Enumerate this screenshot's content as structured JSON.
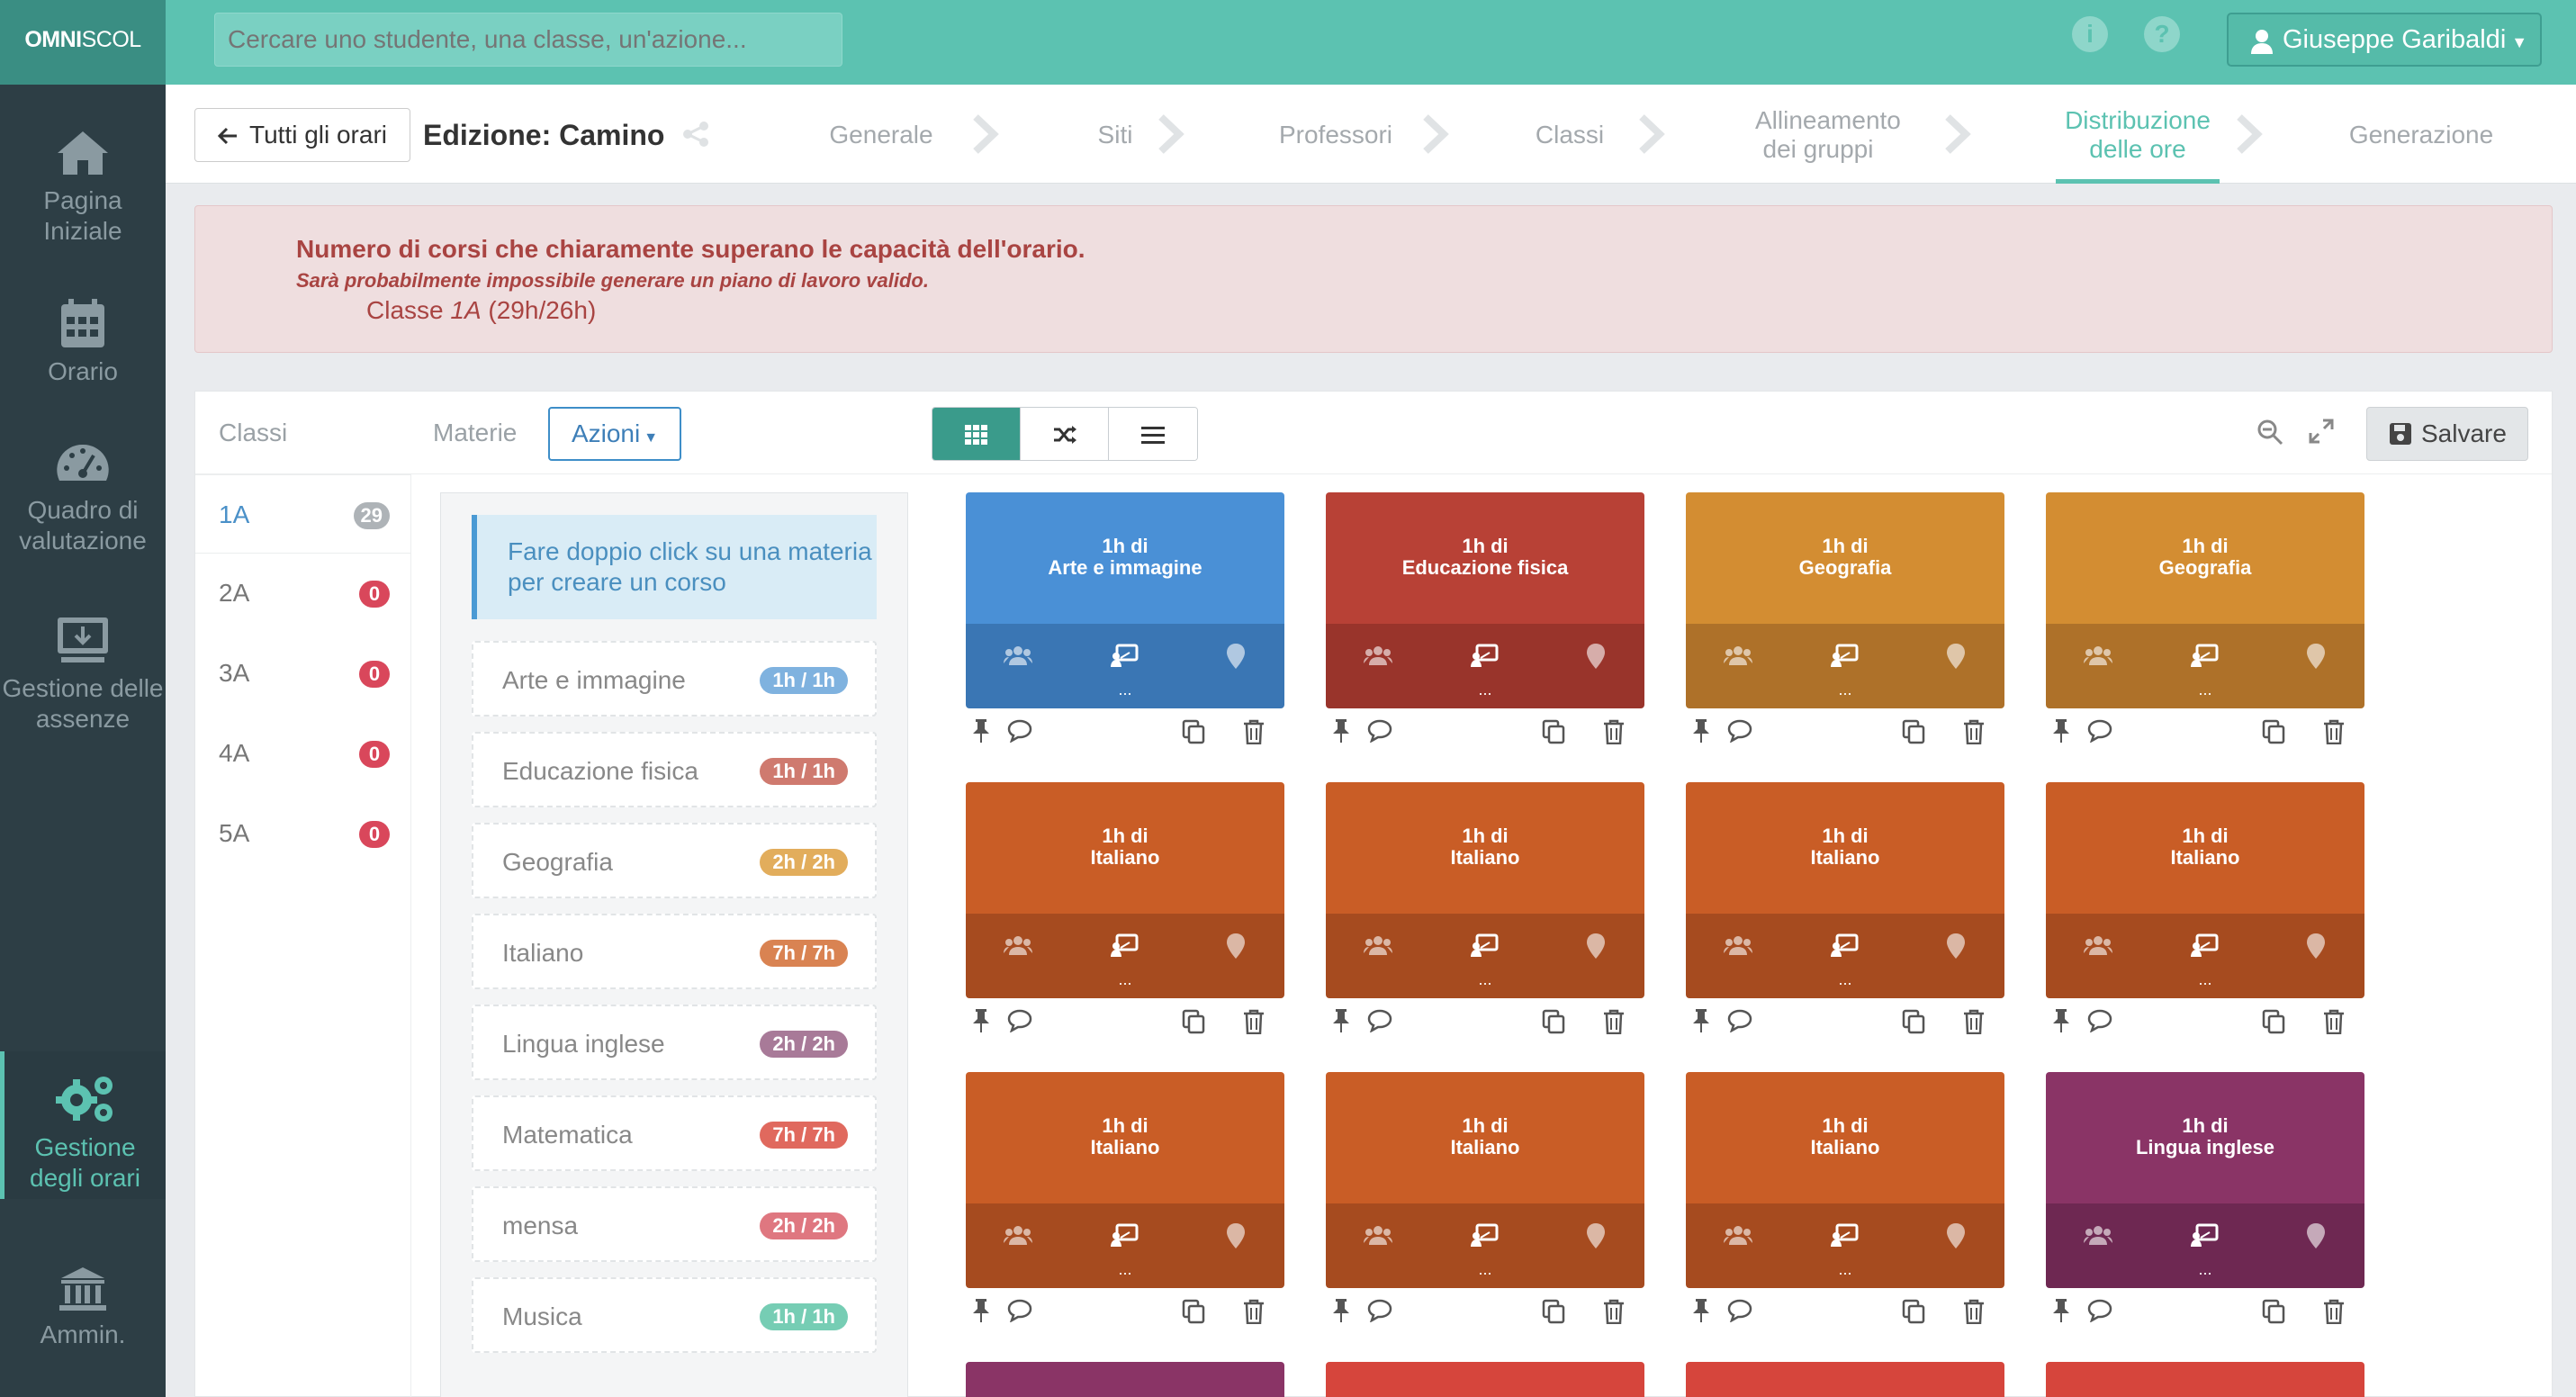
{
  "app": {
    "brand_bold": "OMNI",
    "brand_light": "SCOL"
  },
  "search": {
    "placeholder": "Cercare uno studente, una classe, un'azione..."
  },
  "user": {
    "name": "Giuseppe Garibaldi"
  },
  "sidebar": {
    "items": [
      {
        "label": "Pagina Iniziale",
        "icon": "home-icon"
      },
      {
        "label": "Orario",
        "icon": "calendar-icon"
      },
      {
        "label": "Quadro di valutazione",
        "icon": "dashboard-icon"
      },
      {
        "label": "Gestione delle assenze",
        "icon": "monitor-icon"
      },
      {
        "label": "Gestione degli orari",
        "icon": "gears-icon",
        "active": true
      },
      {
        "label": "Ammin.",
        "icon": "bank-icon"
      }
    ]
  },
  "subheader": {
    "back_label": "Tutti gli orari",
    "edition": "Edizione: Camino",
    "steps": [
      "Generale",
      "Siti",
      "Professori",
      "Classi",
      "Allineamento dei gruppi",
      "Distribuzione delle ore",
      "Generazione"
    ],
    "active_step": "Distribuzione delle ore"
  },
  "alert": {
    "title": "Numero di corsi che chiaramente superano le capacità dell'orario.",
    "subtitle": "Sarà probabilmente impossibile generare un piano di lavoro valido.",
    "class_prefix": "Classe",
    "class_name": "1A",
    "class_hours": "(29h/26h)"
  },
  "toolbar": {
    "classi": "Classi",
    "materie": "Materie",
    "azioni": "Azioni",
    "save": "Salvare"
  },
  "classes": [
    {
      "name": "1A",
      "count": "29",
      "active": true,
      "badge_color": "#aeb3b7"
    },
    {
      "name": "2A",
      "count": "0",
      "badge_color": "#d9475b"
    },
    {
      "name": "3A",
      "count": "0",
      "badge_color": "#d9475b"
    },
    {
      "name": "4A",
      "count": "0",
      "badge_color": "#d9475b"
    },
    {
      "name": "5A",
      "count": "0",
      "badge_color": "#d9475b"
    }
  ],
  "hint": "Fare doppio click su una materia per creare un corso",
  "subjects": [
    {
      "name": "Arte e immagine",
      "hours": "1h / 1h",
      "color": "#7fb2df"
    },
    {
      "name": "Educazione fisica",
      "hours": "1h / 1h",
      "color": "#cf7a6f"
    },
    {
      "name": "Geografia",
      "hours": "2h / 2h",
      "color": "#e2ad5c"
    },
    {
      "name": "Italiano",
      "hours": "7h / 7h",
      "color": "#d98352"
    },
    {
      "name": "Lingua inglese",
      "hours": "2h / 2h",
      "color": "#a87a98"
    },
    {
      "name": "Matematica",
      "hours": "7h / 7h",
      "color": "#e0695e"
    },
    {
      "name": "mensa",
      "hours": "2h / 2h",
      "color": "#df7780"
    },
    {
      "name": "Musica",
      "hours": "1h / 1h",
      "color": "#76cdb4"
    }
  ],
  "card_prefix": "1h di",
  "card_dots": "...",
  "courses": [
    {
      "subject": "Arte e immagine",
      "color": "#4a90d6",
      "bar": "#3a76b4"
    },
    {
      "subject": "Educazione fisica",
      "color": "#b84136",
      "bar": "#99342b"
    },
    {
      "subject": "Geografia",
      "color": "#d38d32",
      "bar": "#ae7129"
    },
    {
      "subject": "Geografia",
      "color": "#d38d32",
      "bar": "#ae7129"
    },
    {
      "subject": "Italiano",
      "color": "#c95d26",
      "bar": "#a64b1f"
    },
    {
      "subject": "Italiano",
      "color": "#c95d26",
      "bar": "#a64b1f"
    },
    {
      "subject": "Italiano",
      "color": "#c95d26",
      "bar": "#a64b1f"
    },
    {
      "subject": "Italiano",
      "color": "#c95d26",
      "bar": "#a64b1f"
    },
    {
      "subject": "Italiano",
      "color": "#c95d26",
      "bar": "#a64b1f"
    },
    {
      "subject": "Italiano",
      "color": "#c95d26",
      "bar": "#a64b1f"
    },
    {
      "subject": "Italiano",
      "color": "#c95d26",
      "bar": "#a64b1f"
    },
    {
      "subject": "Lingua inglese",
      "color": "#8a3466",
      "bar": "#6e2852"
    }
  ],
  "partial_card_colors": [
    "#8a3466",
    "#d6453c",
    "#d6453c",
    "#d6453c"
  ]
}
